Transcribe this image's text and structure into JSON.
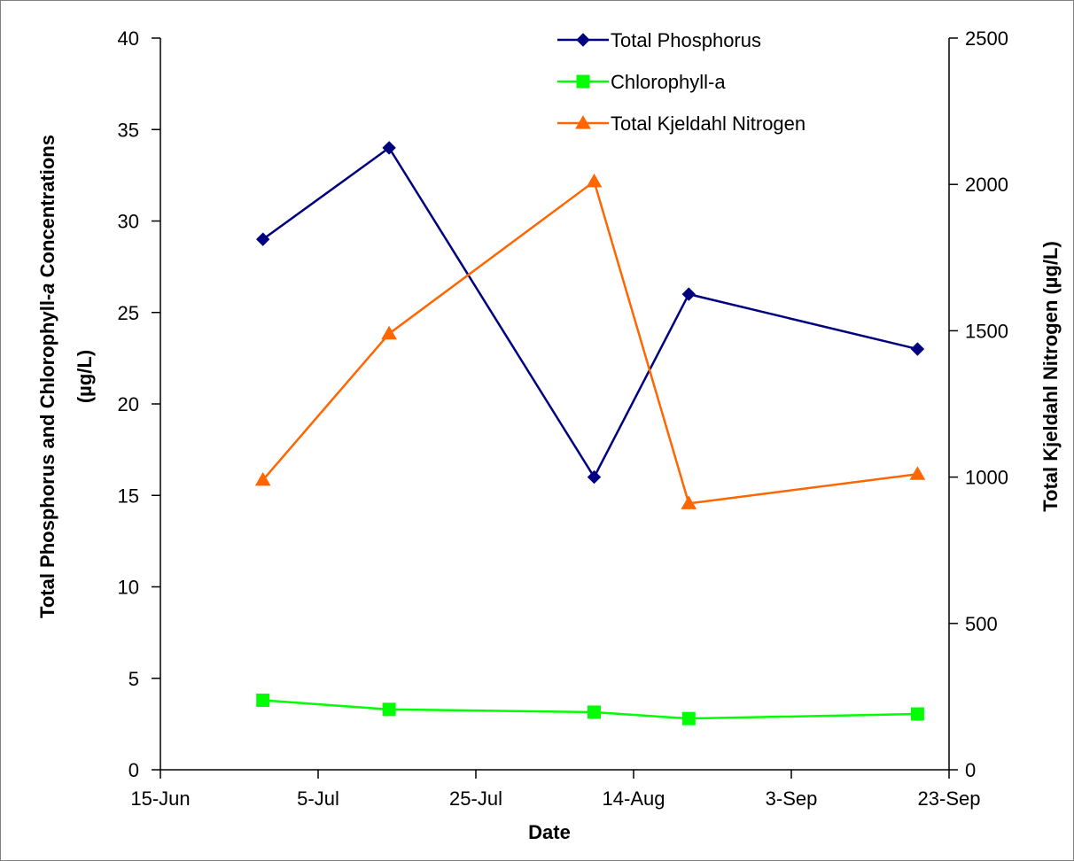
{
  "chart_data": {
    "type": "line",
    "xlabel": "Date",
    "ylabel_left": "Total Phosphorus and Chlorophyll-a Concentrations (µg/L)",
    "ylabel_left_parts": {
      "line1_pre": "Total Phosphorus and Chlorophyll-",
      "line1_italic": "a",
      "line1_post": " Concentrations",
      "line2": "(µg/L)"
    },
    "ylabel_right": "Total Kjeldahl Nitrogen (µg/L)",
    "x_ticks": [
      "15-Jun",
      "5-Jul",
      "25-Jul",
      "14-Aug",
      "3-Sep",
      "23-Sep"
    ],
    "x_tick_dates": [
      "2000-06-15",
      "2000-07-05",
      "2000-07-25",
      "2000-08-14",
      "2000-09-03",
      "2000-09-23"
    ],
    "xlim": [
      "2000-06-15",
      "2000-09-23"
    ],
    "ylim_left": [
      0,
      40
    ],
    "yticks_left": [
      0,
      5,
      10,
      15,
      20,
      25,
      30,
      35,
      40
    ],
    "ylim_right": [
      0,
      2500
    ],
    "yticks_right": [
      0,
      500,
      1000,
      1500,
      2000,
      2500
    ],
    "grid": false,
    "legend_position": "top-center",
    "series": [
      {
        "name": "Total Phosphorus",
        "axis": "left",
        "color": "#000080",
        "marker": "diamond",
        "x": [
          "2000-06-28",
          "2000-07-14",
          "2000-08-09",
          "2000-08-21",
          "2000-09-19"
        ],
        "values": [
          29,
          34,
          16,
          26,
          23
        ]
      },
      {
        "name": "Chlorophyll-a",
        "axis": "left",
        "color": "#00ff00",
        "marker": "square",
        "x": [
          "2000-06-28",
          "2000-07-14",
          "2000-08-09",
          "2000-08-21",
          "2000-09-19"
        ],
        "values": [
          3.8,
          3.3,
          3.15,
          2.8,
          3.05
        ]
      },
      {
        "name": "Total Kjeldahl Nitrogen",
        "axis": "right",
        "color": "#ff6600",
        "marker": "triangle",
        "x": [
          "2000-06-28",
          "2000-07-14",
          "2000-08-09",
          "2000-08-21",
          "2000-09-19"
        ],
        "values": [
          990,
          1490,
          2010,
          910,
          1010
        ]
      }
    ]
  }
}
